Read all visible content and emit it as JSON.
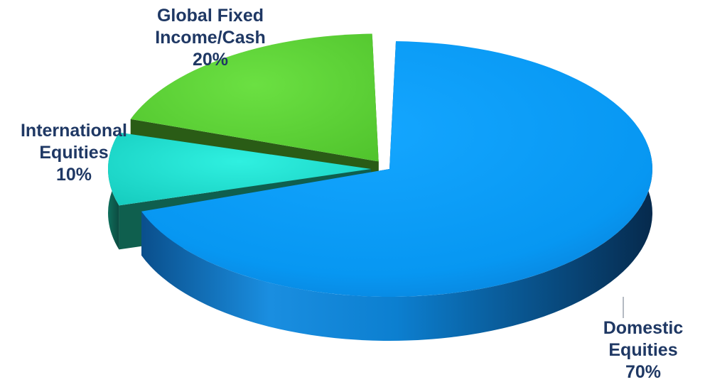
{
  "chart_data": {
    "type": "pie",
    "style": "3d-exploded",
    "title": "",
    "slices": [
      {
        "name": "Domestic Equities",
        "label_lines": [
          "Domestic",
          "Equities",
          "70%"
        ],
        "value": 70,
        "color": "#0b9cf5",
        "color_dark": "#083e6b"
      },
      {
        "name": "International Equities",
        "label_lines": [
          "International",
          "Equities",
          "10%"
        ],
        "value": 10,
        "color": "#1ee0d2",
        "color_dark": "#0f5f4e"
      },
      {
        "name": "Global Fixed Income/Cash",
        "label_lines": [
          "Global Fixed",
          "Income/Cash",
          "20%"
        ],
        "value": 20,
        "color": "#5fd33a",
        "color_dark": "#2a5c16"
      }
    ]
  }
}
